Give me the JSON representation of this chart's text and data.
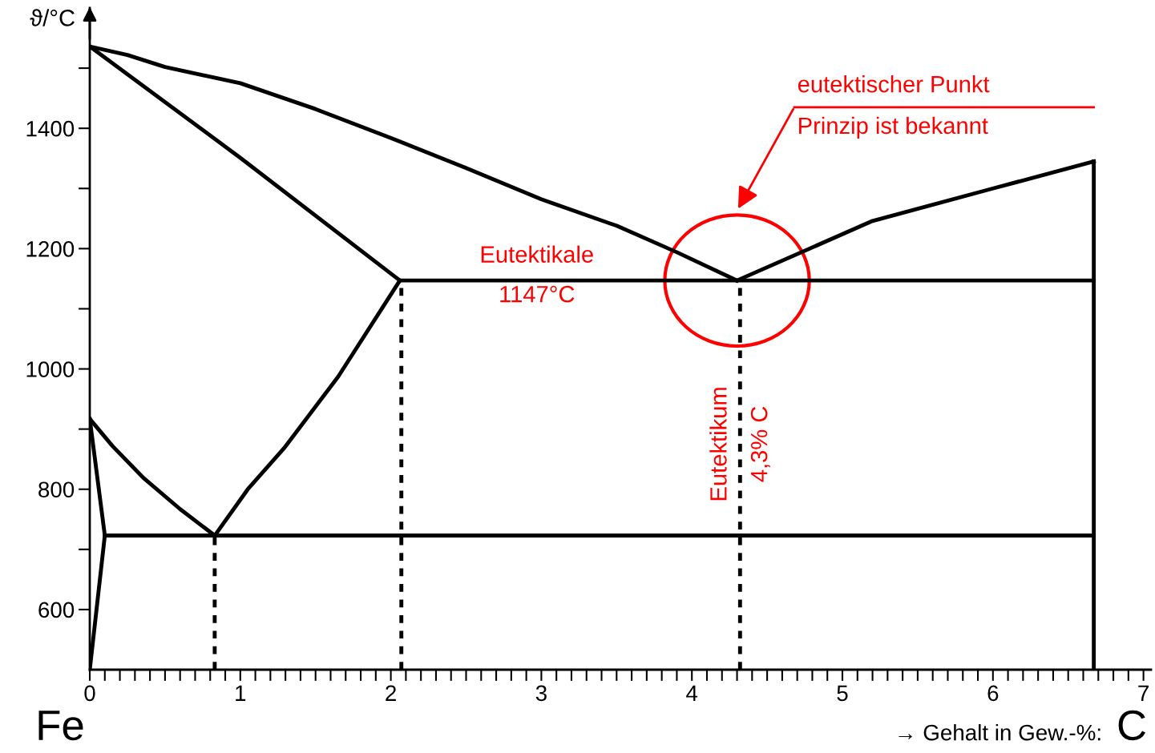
{
  "chart_data": {
    "type": "line",
    "ylabel": "ϑ/°C",
    "xlabel": "→ Gehalt in Gew.-%:",
    "xlim": [
      0,
      7.05
    ],
    "ylim": [
      500,
      1600
    ],
    "xticks": [
      0,
      {
        "value": 0.1,
        "label": null
      },
      {
        "value": 0.2,
        "label": null
      },
      {
        "value": 0.3,
        "label": null
      },
      {
        "value": 0.4,
        "label": null
      },
      {
        "value": 0.5,
        "label": null
      },
      {
        "value": 0.6,
        "label": null
      },
      {
        "value": 0.7,
        "label": null
      },
      {
        "value": 0.8,
        "label": null
      },
      {
        "value": 0.9,
        "label": null
      },
      1,
      {
        "value": 1.1,
        "label": null
      },
      {
        "value": 1.2,
        "label": null
      },
      {
        "value": 1.3,
        "label": null
      },
      {
        "value": 1.4,
        "label": null
      },
      {
        "value": 1.5,
        "label": null
      },
      {
        "value": 1.6,
        "label": null
      },
      {
        "value": 1.7,
        "label": null
      },
      {
        "value": 1.8,
        "label": null
      },
      {
        "value": 1.9,
        "label": null
      },
      2,
      {
        "value": 2.1,
        "label": null
      },
      {
        "value": 2.2,
        "label": null
      },
      {
        "value": 2.3,
        "label": null
      },
      {
        "value": 2.4,
        "label": null
      },
      {
        "value": 2.5,
        "label": null
      },
      {
        "value": 2.6,
        "label": null
      },
      {
        "value": 2.7,
        "label": null
      },
      {
        "value": 2.8,
        "label": null
      },
      {
        "value": 2.9,
        "label": null
      },
      3,
      {
        "value": 3.1,
        "label": null
      },
      {
        "value": 3.2,
        "label": null
      },
      {
        "value": 3.3,
        "label": null
      },
      {
        "value": 3.4,
        "label": null
      },
      {
        "value": 3.5,
        "label": null
      },
      {
        "value": 3.6,
        "label": null
      },
      {
        "value": 3.7,
        "label": null
      },
      {
        "value": 3.8,
        "label": null
      },
      {
        "value": 3.9,
        "label": null
      },
      4,
      {
        "value": 4.1,
        "label": null
      },
      {
        "value": 4.2,
        "label": null
      },
      {
        "value": 4.3,
        "label": null
      },
      {
        "value": 4.4,
        "label": null
      },
      {
        "value": 4.5,
        "label": null
      },
      {
        "value": 4.6,
        "label": null
      },
      {
        "value": 4.7,
        "label": null
      },
      {
        "value": 4.8,
        "label": null
      },
      {
        "value": 4.9,
        "label": null
      },
      5,
      {
        "value": 5.1,
        "label": null
      },
      {
        "value": 5.2,
        "label": null
      },
      {
        "value": 5.3,
        "label": null
      },
      {
        "value": 5.4,
        "label": null
      },
      {
        "value": 5.5,
        "label": null
      },
      {
        "value": 5.6,
        "label": null
      },
      {
        "value": 5.7,
        "label": null
      },
      {
        "value": 5.8,
        "label": null
      },
      {
        "value": 5.9,
        "label": null
      },
      6,
      {
        "value": 6.1,
        "label": null
      },
      {
        "value": 6.2,
        "label": null
      },
      {
        "value": 6.3,
        "label": null
      },
      {
        "value": 6.4,
        "label": null
      },
      {
        "value": 6.5,
        "label": null
      },
      {
        "value": 6.6,
        "label": null
      },
      {
        "value": 6.7,
        "label": null
      },
      {
        "value": 6.8,
        "label": null
      },
      {
        "value": 6.9,
        "label": null
      },
      7
    ],
    "yticks": [
      600,
      {
        "value": 700,
        "label": null
      },
      800,
      {
        "value": 900,
        "label": null
      },
      1000,
      {
        "value": 1100,
        "label": null
      },
      1200,
      {
        "value": 1300,
        "label": null
      },
      1400,
      {
        "value": 1500,
        "label": null
      }
    ],
    "grid": false,
    "marker": "none",
    "series": [
      {
        "color": "#000000",
        "x": [
          0,
          0.25,
          0.5,
          1.0,
          1.5,
          2.0,
          2.5,
          3.0,
          3.5,
          3.9,
          4.3
        ],
        "values": [
          1536,
          1522,
          1502,
          1475,
          1432,
          1384,
          1334,
          1282,
          1238,
          1194,
          1147
        ]
      },
      {
        "color": "#000000",
        "x": [
          4.3,
          5.2,
          6.0,
          6.67
        ],
        "values": [
          1147,
          1246,
          1300,
          1345
        ]
      },
      {
        "color": "#000000",
        "x": [
          0,
          1.0,
          2.06
        ],
        "values": [
          1536,
          1351,
          1147
        ]
      },
      {
        "color": "#000000",
        "x": [
          2.06,
          6.67
        ],
        "values": [
          1147,
          1147
        ]
      },
      {
        "color": "#000000",
        "x": [
          0.83,
          1.05,
          1.29,
          1.65,
          2.06
        ],
        "values": [
          723,
          800,
          868,
          987,
          1147
        ]
      },
      {
        "color": "#000000",
        "x": [
          0,
          0.15,
          0.36,
          0.6,
          0.83
        ],
        "values": [
          917,
          872,
          818,
          767,
          723
        ]
      },
      {
        "color": "#000000",
        "x": [
          0.1,
          6.67
        ],
        "values": [
          723,
          723
        ]
      },
      {
        "color": "#000000",
        "x": [
          0,
          0.1,
          0
        ],
        "values": [
          500,
          723,
          917
        ]
      },
      {
        "color": "#000000",
        "x": [
          6.67,
          6.67
        ],
        "values": [
          500,
          1345
        ]
      },
      {
        "color": "#000000",
        "line_style": "dashed",
        "x": [
          0.83,
          0.83
        ],
        "values": [
          500,
          723
        ]
      },
      {
        "color": "#000000",
        "line_style": "dashed",
        "x": [
          2.07,
          2.07
        ],
        "values": [
          500,
          1147
        ]
      },
      {
        "color": "#000000",
        "line_style": "dashed",
        "x": [
          4.32,
          4.32
        ],
        "values": [
          500,
          1147
        ]
      }
    ],
    "annotations": [
      "eutektischer Punkt",
      "Prinzip ist bekannt",
      "Eutektikale",
      "1147°C",
      "Eutektikum",
      "4,3% C",
      "Fe",
      "C"
    ]
  }
}
